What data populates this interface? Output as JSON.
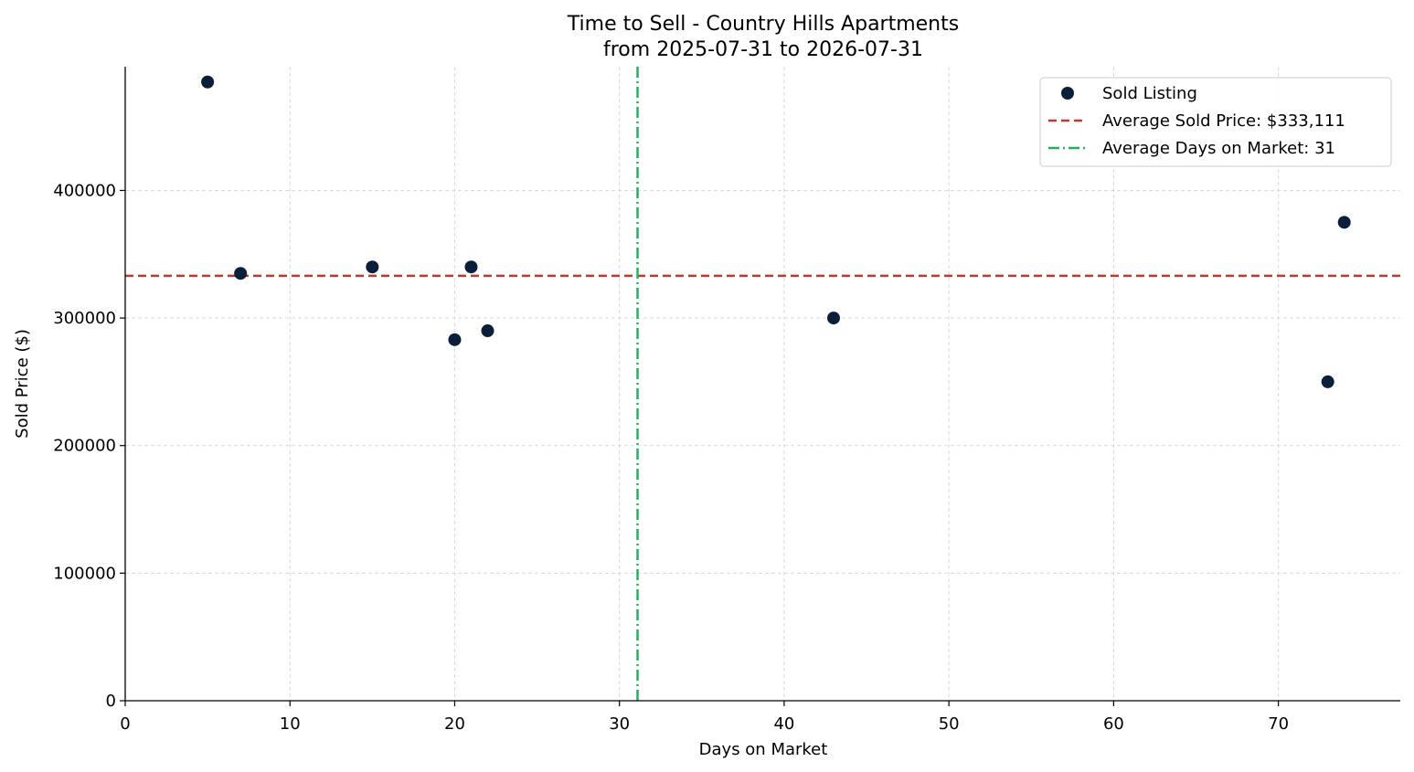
{
  "chart_data": {
    "type": "scatter",
    "title": "Time to Sell - Country Hills Apartments",
    "subtitle": "from 2025-07-31 to 2026-07-31",
    "xlabel": "Days on Market",
    "ylabel": "Sold Price ($)",
    "xlim": [
      0,
      77.4
    ],
    "ylim": [
      0,
      497000
    ],
    "xticks": [
      0,
      10,
      20,
      30,
      40,
      50,
      60,
      70
    ],
    "yticks": [
      0,
      100000,
      200000,
      300000,
      400000
    ],
    "grid": true,
    "legend_position": "top-right",
    "series": [
      {
        "name": "Sold Listing",
        "color": "#0b1f3a",
        "points": [
          {
            "x": 5,
            "y": 485000
          },
          {
            "x": 7,
            "y": 335000
          },
          {
            "x": 15,
            "y": 340000
          },
          {
            "x": 20,
            "y": 283000
          },
          {
            "x": 21,
            "y": 340000
          },
          {
            "x": 22,
            "y": 290000
          },
          {
            "x": 43,
            "y": 300000
          },
          {
            "x": 73,
            "y": 250000
          },
          {
            "x": 74,
            "y": 375000
          }
        ]
      }
    ],
    "reference_lines": [
      {
        "name": "Average Sold Price: $333,111",
        "orientation": "horizontal",
        "value": 333111,
        "color": "#c0392b",
        "style": "dashed"
      },
      {
        "name": "Average Days on Market: 31",
        "orientation": "vertical",
        "value": 31.1,
        "color": "#27ae60",
        "style": "dashdot"
      }
    ]
  }
}
